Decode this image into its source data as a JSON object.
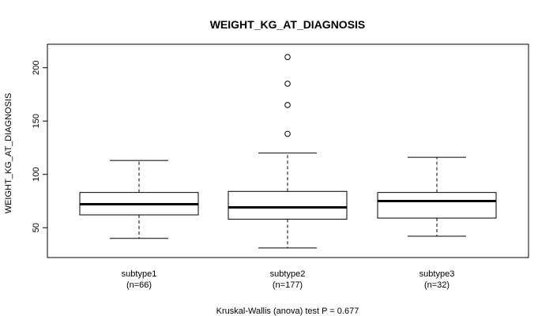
{
  "chart_data": {
    "type": "boxplot",
    "title": "WEIGHT_KG_AT_DIAGNOSIS",
    "xlabel": "",
    "ylabel": "WEIGHT_KG_AT_DIAGNOSIS",
    "ylim": [
      22,
      222
    ],
    "yticks": [
      50,
      100,
      150,
      200
    ],
    "ytick_labels": [
      "50",
      "100",
      "150",
      "200"
    ],
    "categories": [
      "subtype1",
      "subtype2",
      "subtype3"
    ],
    "category_counts": [
      "(n=66)",
      "(n=177)",
      "(n=32)"
    ],
    "boxes": [
      {
        "name": "subtype1",
        "whisker_low": 40,
        "q1": 62,
        "median": 72,
        "q3": 83,
        "whisker_high": 113,
        "outliers": []
      },
      {
        "name": "subtype2",
        "whisker_low": 31,
        "q1": 58,
        "median": 69,
        "q3": 84,
        "whisker_high": 120,
        "outliers": [
          138,
          165,
          185,
          210
        ]
      },
      {
        "name": "subtype3",
        "whisker_low": 42,
        "q1": 59,
        "median": 75,
        "q3": 83,
        "whisker_high": 116,
        "outliers": []
      }
    ],
    "footer": "Kruskal-Wallis (anova) test P = 0.677"
  }
}
